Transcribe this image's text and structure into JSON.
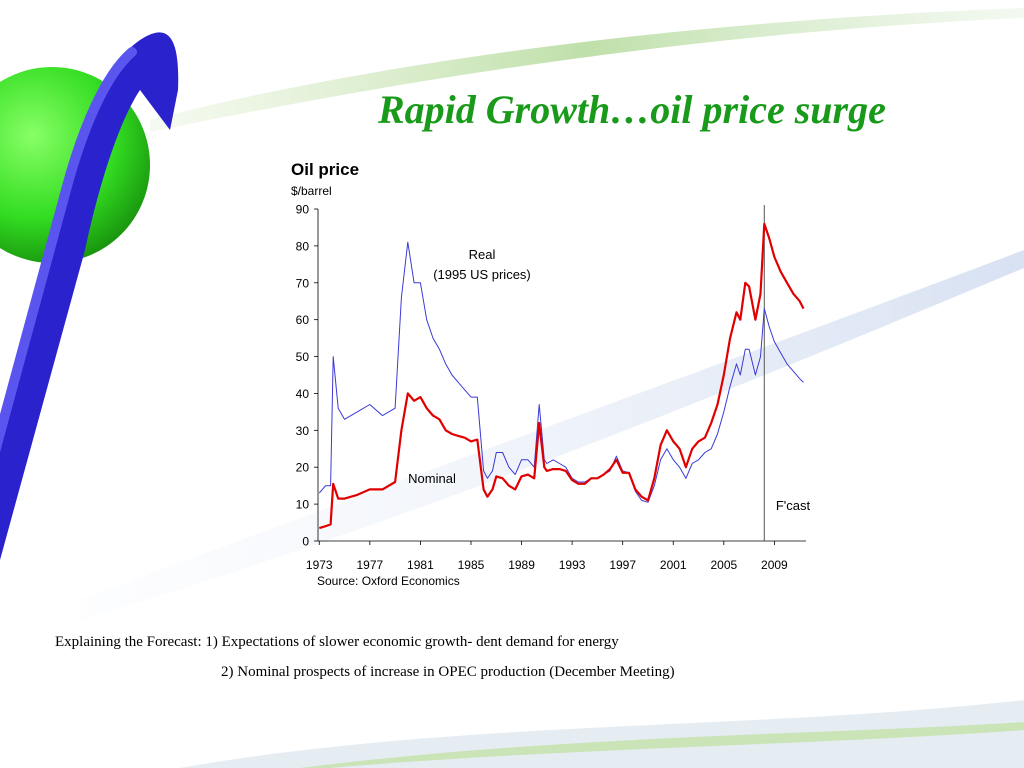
{
  "slide": {
    "title": "Rapid Growth…oil price surge",
    "note_line1": "Explaining the Forecast: 1) Expectations of slower economic growth- dent demand for energy",
    "note_line2": "2) Nominal prospects of increase in OPEC production (December Meeting)"
  },
  "colors": {
    "title": "#1a9a1a",
    "nominal": "#e00000",
    "real": "#3a3ad6",
    "sphere": "#33dd22",
    "ribbon": "#2a22cc"
  },
  "chart_data": {
    "type": "line",
    "title": "Oil price",
    "ylabel": "$/barrel",
    "source": "Source: Oxford Economics",
    "ylim": [
      0,
      90
    ],
    "yticks": [
      "0",
      "10",
      "20",
      "30",
      "40",
      "50",
      "60",
      "70",
      "80",
      "90"
    ],
    "xlim": [
      1972.9,
      2011.5
    ],
    "xticks": [
      "1973",
      "1977",
      "1981",
      "1985",
      "1989",
      "1993",
      "1997",
      "2001",
      "2005",
      "2009"
    ],
    "forecast_start": 2008.2,
    "forecast_label": "F'cast",
    "series": [
      {
        "name": "Nominal",
        "color": "#e00000",
        "x": [
          1973,
          1973.5,
          1973.9,
          1974.1,
          1974.5,
          1975,
          1976,
          1977,
          1978,
          1979,
          1979.5,
          1980,
          1980.5,
          1981,
          1981.5,
          1982,
          1982.5,
          1983,
          1983.5,
          1984,
          1984.5,
          1985,
          1985.5,
          1986,
          1986.3,
          1986.7,
          1987,
          1987.5,
          1988,
          1988.5,
          1989,
          1989.5,
          1990,
          1990.4,
          1990.8,
          1991,
          1991.5,
          1992,
          1992.5,
          1993,
          1993.5,
          1994,
          1994.5,
          1995,
          1995.5,
          1996,
          1996.5,
          1997,
          1997.5,
          1998,
          1998.5,
          1999,
          1999.5,
          2000,
          2000.5,
          2001,
          2001.5,
          2002,
          2002.5,
          2003,
          2003.5,
          2004,
          2004.5,
          2005,
          2005.5,
          2006,
          2006.3,
          2006.7,
          2007,
          2007.5,
          2007.9,
          2008.2,
          2008.6,
          2009,
          2009.5,
          2010,
          2010.5,
          2011,
          2011.3
        ],
        "values": [
          3.5,
          4,
          4.5,
          15.5,
          11.5,
          11.5,
          12.5,
          14,
          14,
          16,
          30,
          40,
          38,
          39,
          36,
          34,
          33,
          30,
          29,
          28.5,
          28,
          27,
          27.5,
          14,
          12,
          14,
          17.5,
          17,
          15,
          14,
          17.5,
          18,
          17,
          32,
          20,
          19,
          19.5,
          19.5,
          19,
          16.5,
          15.5,
          15.5,
          17,
          17,
          18,
          19.5,
          22,
          18.5,
          18.5,
          14,
          12,
          11,
          17,
          26,
          30,
          27,
          25,
          20,
          25,
          27,
          28,
          32,
          37,
          45,
          55,
          62,
          60,
          70,
          69,
          60,
          67,
          86,
          82,
          77,
          73,
          70,
          67,
          65,
          63
        ]
      },
      {
        "name": "Real",
        "sublabel": "(1995 US prices)",
        "color": "#3a3ad6",
        "x": [
          1973,
          1973.5,
          1973.9,
          1974.1,
          1974.5,
          1975,
          1976,
          1977,
          1978,
          1979,
          1979.5,
          1980,
          1980.5,
          1981,
          1981.5,
          1982,
          1982.5,
          1983,
          1983.5,
          1984,
          1984.5,
          1985,
          1985.5,
          1986,
          1986.3,
          1986.7,
          1987,
          1987.5,
          1988,
          1988.5,
          1989,
          1989.5,
          1990,
          1990.4,
          1990.8,
          1991,
          1991.5,
          1992,
          1992.5,
          1993,
          1993.5,
          1994,
          1994.5,
          1995,
          1995.5,
          1996,
          1996.5,
          1997,
          1997.5,
          1998,
          1998.5,
          1999,
          1999.5,
          2000,
          2000.5,
          2001,
          2001.5,
          2002,
          2002.5,
          2003,
          2003.5,
          2004,
          2004.5,
          2005,
          2005.5,
          2006,
          2006.3,
          2006.7,
          2007,
          2007.5,
          2007.9,
          2008.2,
          2008.6,
          2009,
          2009.5,
          2010,
          2010.5,
          2011,
          2011.3
        ],
        "values": [
          13,
          15,
          15,
          50,
          36,
          33,
          35,
          37,
          34,
          36,
          66,
          81,
          70,
          70,
          60,
          55,
          52,
          48,
          45,
          43,
          41,
          39,
          39,
          19,
          17,
          19,
          24,
          24,
          20,
          18,
          22,
          22,
          20,
          37,
          22,
          21,
          22,
          21,
          20,
          17,
          16,
          16,
          17,
          17,
          18,
          19,
          23,
          19,
          18.5,
          13.5,
          11,
          10.5,
          15,
          22,
          25,
          22,
          20,
          17,
          21,
          22,
          24,
          25,
          29,
          35,
          42,
          48,
          45,
          52,
          52,
          45,
          50,
          63,
          58,
          54,
          51,
          48,
          46,
          44,
          43
        ]
      }
    ]
  }
}
